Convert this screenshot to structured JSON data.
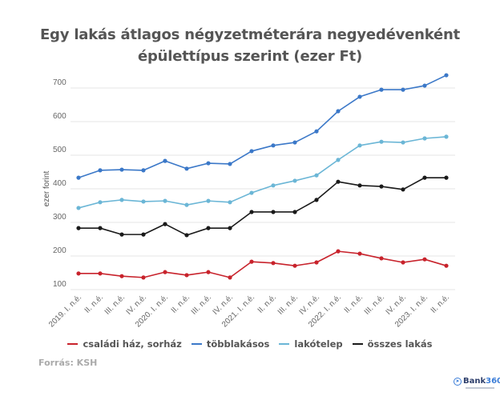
{
  "title_lines": [
    "Egy lakás átlagos négyzetméterára negyedévenként",
    "épülettípus szerint (ezer Ft)"
  ],
  "source": "Forrás: KSH",
  "logo": {
    "brand": "Bank",
    "number": "360"
  },
  "chart_data": {
    "type": "line",
    "title": "Egy lakás átlagos négyzetméterára negyedévenként épülettípus szerint (ezer Ft)",
    "xlabel": "",
    "ylabel": "ezer forint",
    "ylim": [
      100,
      700
    ],
    "yticks": [
      100,
      200,
      300,
      400,
      500,
      600,
      700
    ],
    "grid": true,
    "legend_position": "bottom",
    "categories": [
      "2019. I. n.é.",
      "II. n.é.",
      "III. n.é.",
      "IV. n.é.",
      "2020. I. n.é.",
      "II. n.é.",
      "III. n.é.",
      "IV. n.é.",
      "2021. I. n.é.",
      "II. n.é.",
      "III. n.é.",
      "IV. n.é.",
      "2022. I. n.é.",
      "II. n.é.",
      "III. n.é.",
      "IV. n.é.",
      "2023. I. n.é.",
      "II. n.é."
    ],
    "series": [
      {
        "name": "családi ház, sorház",
        "color": "#c8232c",
        "values": [
          148,
          148,
          140,
          136,
          152,
          143,
          152,
          136,
          183,
          179,
          171,
          181,
          214,
          207,
          193,
          181,
          190,
          171
        ]
      },
      {
        "name": "többlakásos",
        "color": "#3b78c8",
        "values": [
          433,
          455,
          457,
          455,
          483,
          460,
          476,
          474,
          512,
          529,
          538,
          571,
          631,
          674,
          695,
          695,
          707,
          738
        ]
      },
      {
        "name": "lakótelep",
        "color": "#6bb6d6",
        "values": [
          343,
          360,
          367,
          362,
          364,
          352,
          364,
          360,
          388,
          410,
          424,
          440,
          486,
          529,
          540,
          538,
          550,
          555
        ]
      },
      {
        "name": "összes lakás",
        "color": "#1a1a1a",
        "values": [
          283,
          283,
          264,
          264,
          295,
          262,
          283,
          283,
          331,
          331,
          331,
          367,
          421,
          410,
          407,
          398,
          433,
          433
        ]
      }
    ]
  }
}
